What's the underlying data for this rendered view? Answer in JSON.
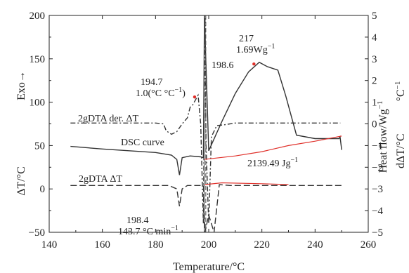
{
  "chart_data": {
    "type": "line",
    "xlabel": "Temperature/°C",
    "ylabel_left": "ΔT/°C",
    "ylabel_left_arrow": "Exo→",
    "ylabel_right_outer": "Heat flow/Wg",
    "ylabel_right_outer_sup": "−1",
    "ylabel_right_inner": "dΔT/°C",
    "ylabel_right_inner_unit": "°C",
    "ylabel_right_inner_sup": "−1",
    "xlim": [
      140,
      260
    ],
    "ylim_left": [
      -50,
      200
    ],
    "ylim_right": [
      -5,
      5
    ],
    "x_ticks": [
      "140",
      "160",
      "180",
      "200",
      "220",
      "240",
      "260"
    ],
    "y_left_ticks": [
      "200",
      "150",
      "100",
      "50",
      "0",
      "−50"
    ],
    "y_right_ticks": [
      "5",
      "4",
      "3",
      "2",
      "1",
      "0",
      "−1",
      "−2",
      "−3",
      "−4",
      "−5"
    ],
    "grid": false,
    "series": [
      {
        "name": "2gDTA der. ΔT",
        "style": "dash-dot",
        "x": [
          148,
          180,
          183,
          184,
          186,
          188,
          190,
          192,
          193,
          194,
          196,
          197,
          198,
          198.6,
          199,
          200,
          201,
          203,
          206,
          210,
          220,
          226,
          232,
          240,
          248,
          249.5
        ],
        "y": [
          76,
          76,
          75,
          67,
          63,
          66,
          75,
          82,
          94,
          97,
          108,
          75,
          -40,
          200,
          50,
          -40,
          60,
          73,
          74,
          76,
          76,
          76,
          76,
          76,
          76,
          76
        ]
      },
      {
        "name": "DSC curve",
        "style": "solid",
        "x": [
          148,
          160,
          170,
          180,
          186,
          188,
          189,
          190,
          193,
          197,
          198,
          198.4,
          200,
          205,
          210,
          215,
          219,
          222,
          226,
          229,
          233,
          240,
          249,
          249.4,
          250
        ],
        "y": [
          49,
          46,
          44,
          42,
          39,
          34,
          16,
          36,
          38,
          37,
          36,
          200,
          44,
          78,
          110,
          135,
          146,
          141,
          137,
          107,
          62,
          58,
          58,
          60,
          45
        ]
      },
      {
        "name": "2gDTA ΔT",
        "style": "dashed",
        "x": [
          148,
          185,
          188,
          189,
          190,
          192,
          196,
          198,
          198.6,
          200,
          202,
          204,
          208,
          220,
          240,
          250
        ],
        "y": [
          4,
          4,
          0,
          -20,
          0,
          4,
          4,
          4,
          -50,
          -30,
          -50,
          5,
          4,
          4,
          4,
          4
        ]
      }
    ],
    "baseline_integration": {
      "x": [
        198.2,
        210,
        220,
        230,
        240,
        250
      ],
      "y": [
        34,
        38,
        43,
        50,
        55,
        61
      ]
    },
    "annotations": [
      {
        "line1": "194.7",
        "line2": "1.0(°C °C",
        "line2_sup": "−1",
        "line2_tail": ")"
      },
      {
        "line1": "198.6"
      },
      {
        "line1": "217",
        "line2": "1.69Wg",
        "line2_sup": "−1"
      },
      {
        "line1": "DSC curve"
      },
      {
        "line1": "2139.49 Jg",
        "line1_sup": "−1"
      },
      {
        "line1": "2gDTA der. ΔT"
      },
      {
        "line1": "2gDTA ΔT"
      },
      {
        "line1": "198.4",
        "line2": "143.7 °C min",
        "line2_sup": "−1"
      }
    ]
  }
}
